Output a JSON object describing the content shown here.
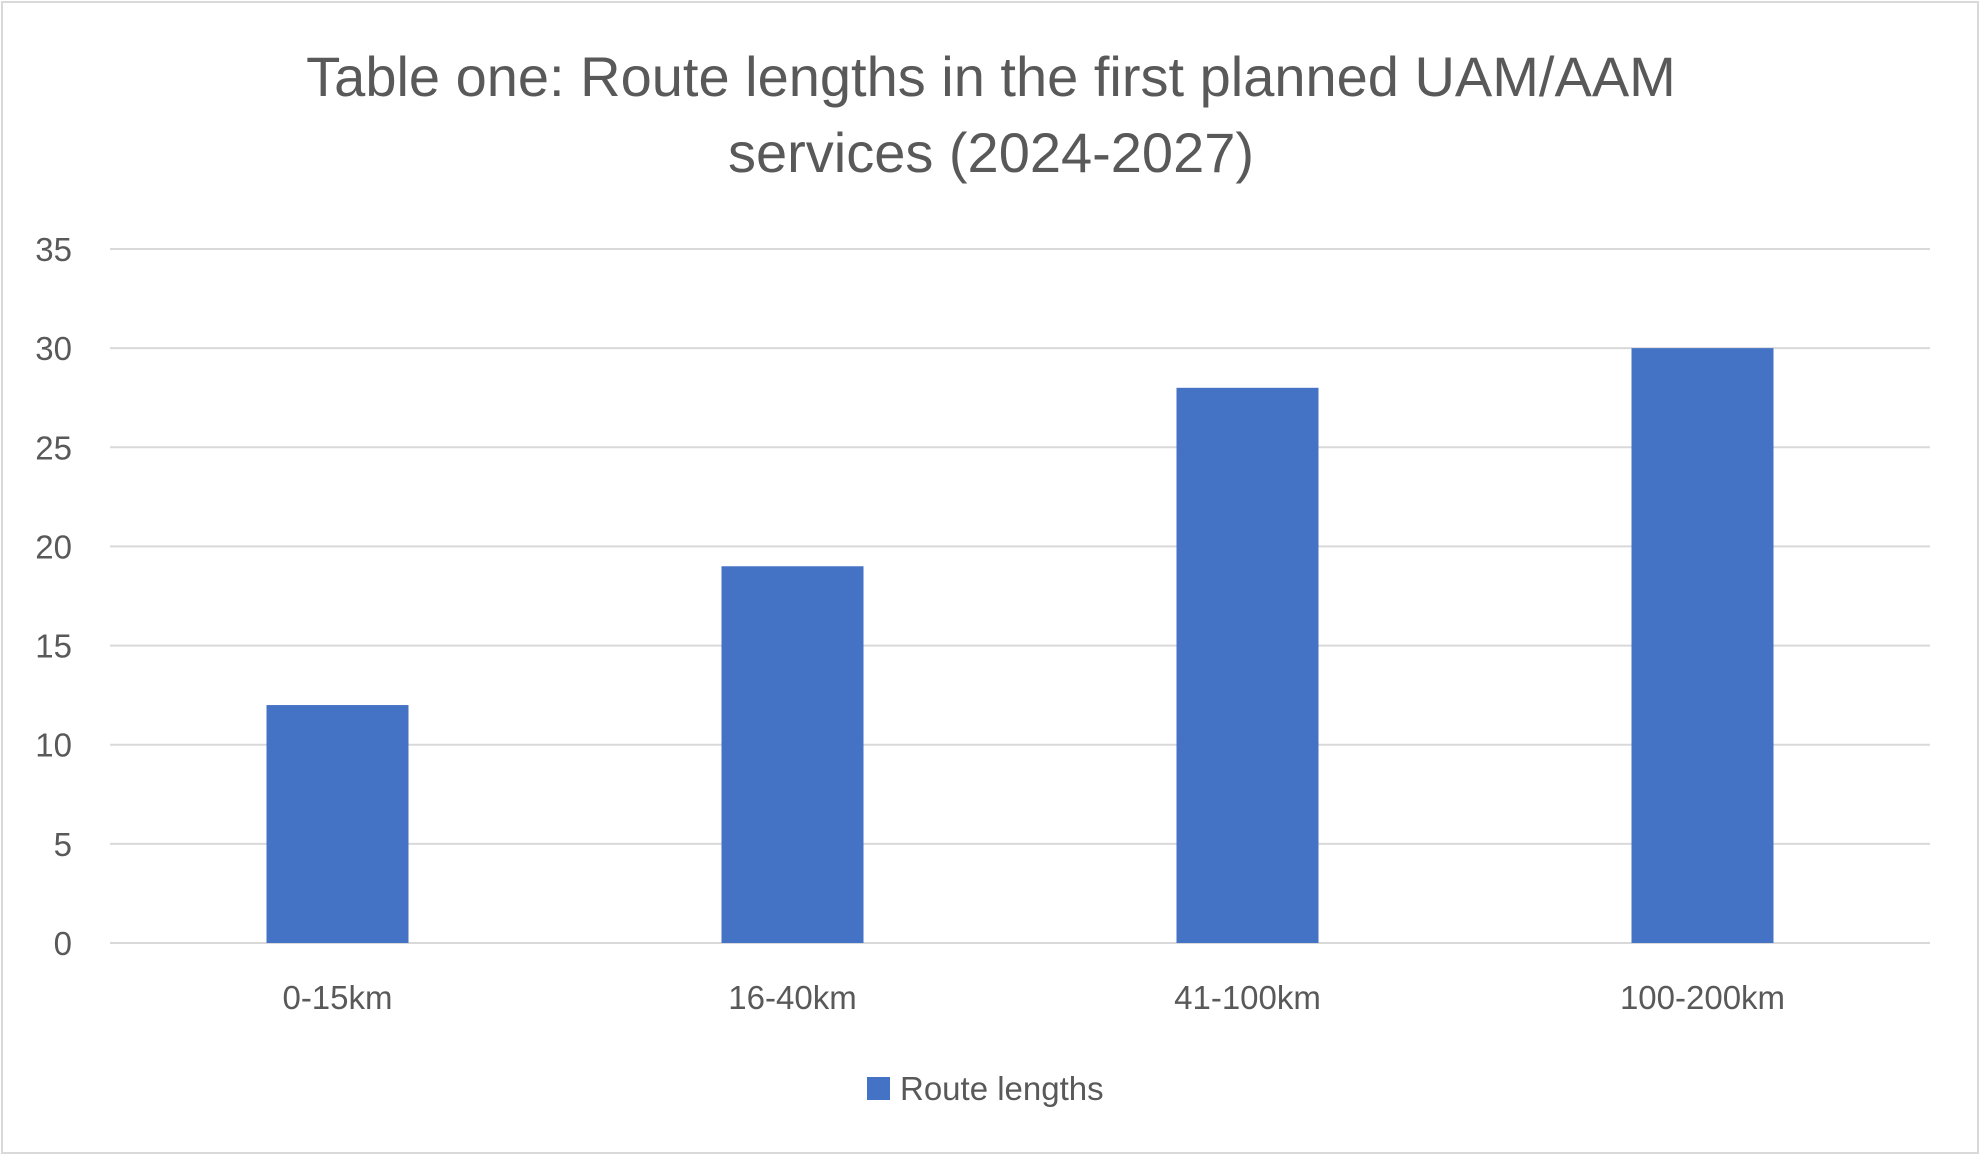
{
  "chart_data": {
    "type": "bar",
    "title_lines": [
      "Table one: Route lengths in the first planned UAM/AAM",
      "services (2024-2027)"
    ],
    "categories": [
      "0-15km",
      "16-40km",
      "41-100km",
      "100-200km"
    ],
    "series": [
      {
        "name": "Route lengths",
        "color": "#4472c4",
        "values": [
          12,
          19,
          28,
          30
        ]
      }
    ],
    "y_ticks": [
      "0",
      "5",
      "10",
      "15",
      "20",
      "25",
      "30",
      "35"
    ],
    "ylim": [
      0,
      35
    ],
    "grid": true,
    "legend_position": "bottom"
  }
}
